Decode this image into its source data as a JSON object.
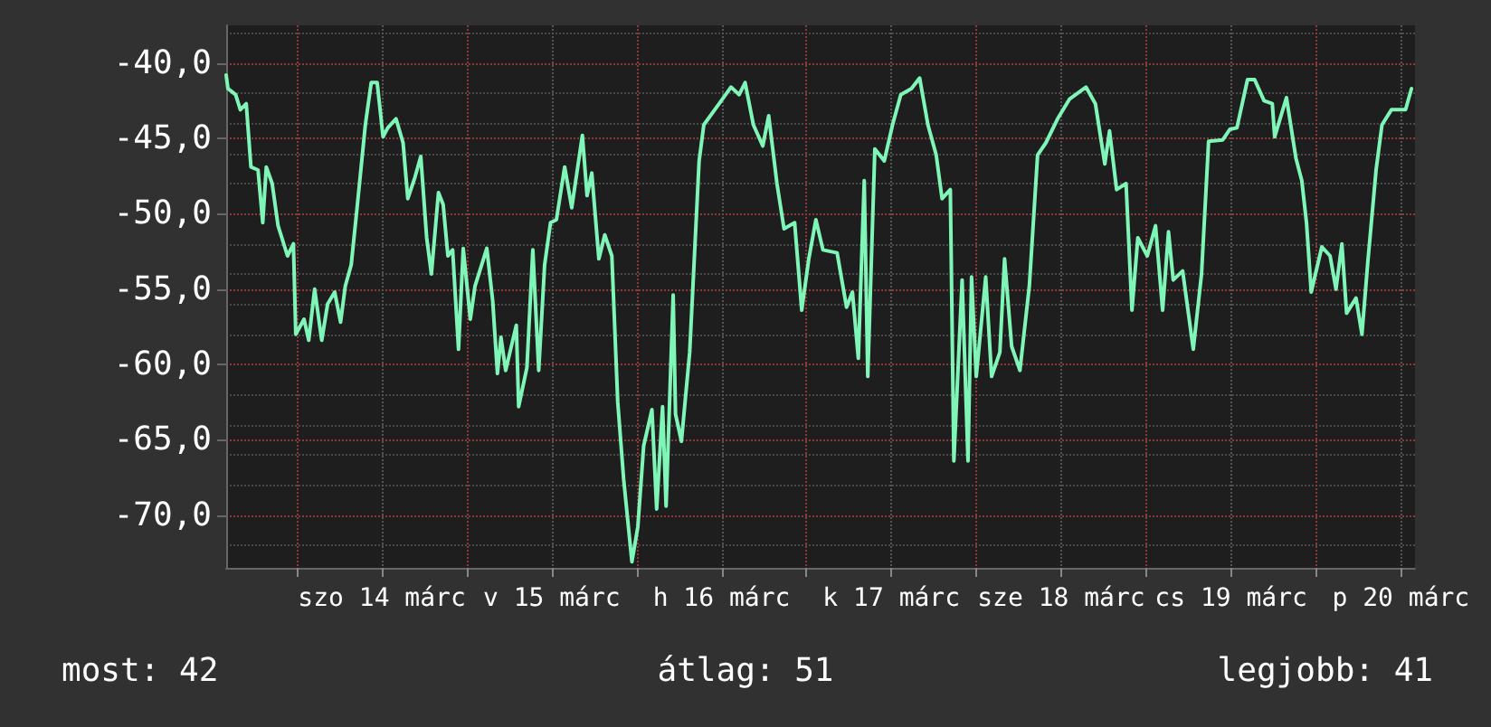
{
  "chart_data": {
    "type": "line",
    "marker": "none",
    "grid": true,
    "xlim": [
      "--03-13T14:00",
      "--03-20T14:00"
    ],
    "xticks": [
      {
        "value": "--03-14T00:00",
        "label": null
      },
      {
        "value": "--03-14T12:00",
        "label": "szo 14 márc"
      },
      {
        "value": "--03-15T00:00",
        "label": null
      },
      {
        "value": "--03-15T12:00",
        "label": "v 15 márc"
      },
      {
        "value": "--03-16T00:00",
        "label": null
      },
      {
        "value": "--03-16T12:00",
        "label": "h 16 márc"
      },
      {
        "value": "--03-17T00:00",
        "label": null
      },
      {
        "value": "--03-17T12:00",
        "label": "k 17 márc"
      },
      {
        "value": "--03-18T00:00",
        "label": null
      },
      {
        "value": "--03-18T12:00",
        "label": "sze 18 márc"
      },
      {
        "value": "--03-19T00:00",
        "label": null
      },
      {
        "value": "--03-19T12:00",
        "label": "cs 19 márc"
      },
      {
        "value": "--03-20T00:00",
        "label": null
      },
      {
        "value": "--03-20T12:00",
        "label": "p 20 márc"
      }
    ],
    "ylim": [
      -73.5,
      -37.5
    ],
    "yticks": [
      {
        "value": -70,
        "label": "-70,0"
      },
      {
        "value": -65,
        "label": "-65,0"
      },
      {
        "value": -60,
        "label": "-60,0"
      },
      {
        "value": -55,
        "label": "-55,0"
      },
      {
        "value": -50,
        "label": "-50,0"
      },
      {
        "value": -45,
        "label": "-45,0"
      },
      {
        "value": -40,
        "label": "-40,0"
      }
    ],
    "annotations": [
      "most: 42",
      "átlag: 51",
      "legjobb: 41"
    ],
    "series": [
      {
        "color": "#7ff5b8",
        "x": [
          "--03-13T14:00",
          "--03-13T14:15",
          "--03-13T15:20",
          "--03-13T16:00",
          "--03-13T16:50",
          "--03-13T17:30",
          "--03-13T18:30",
          "--03-13T19:10",
          "--03-13T19:40",
          "--03-13T20:30",
          "--03-13T21:20",
          "--03-13T22:40",
          "--03-13T23:30",
          "--03-13T23:50",
          "--03-14T01:00",
          "--03-14T01:40",
          "--03-14T02:30",
          "--03-14T03:30",
          "--03-14T04:20",
          "--03-14T05:20",
          "--03-14T06:10",
          "--03-14T06:50",
          "--03-14T07:40",
          "--03-14T08:30",
          "--03-14T09:40",
          "--03-14T10:30",
          "--03-14T11:20",
          "--03-14T12:10",
          "--03-14T12:50",
          "--03-14T14:00",
          "--03-14T15:00",
          "--03-14T15:40",
          "--03-14T16:40",
          "--03-14T17:30",
          "--03-14T18:20",
          "--03-14T19:00",
          "--03-14T20:00",
          "--03-14T20:40",
          "--03-14T21:20",
          "--03-14T22:00",
          "--03-14T22:50",
          "--03-14T23:30",
          "--03-15T00:30",
          "--03-15T01:10",
          "--03-15T02:50",
          "--03-15T03:40",
          "--03-15T04:20",
          "--03-15T04:50",
          "--03-15T05:30",
          "--03-15T07:00",
          "--03-15T07:20",
          "--03-15T08:30",
          "--03-15T09:20",
          "--03-15T10:10",
          "--03-15T11:00",
          "--03-15T11:50",
          "--03-15T12:40",
          "--03-15T13:50",
          "--03-15T14:50",
          "--03-15T16:20",
          "--03-15T17:00",
          "--03-15T17:40",
          "--03-15T18:40",
          "--03-15T19:30",
          "--03-15T20:30",
          "--03-15T21:20",
          "--03-15T22:10",
          "--03-15T23:20",
          "--03-16T00:10",
          "--03-16T01:00",
          "--03-16T02:10",
          "--03-16T02:50",
          "--03-16T03:40",
          "--03-16T04:10",
          "--03-16T05:10",
          "--03-16T05:30",
          "--03-16T06:20",
          "--03-16T07:30",
          "--03-16T08:50",
          "--03-16T09:30",
          "--03-16T11:40",
          "--03-16T13:20",
          "--03-16T14:30",
          "--03-16T15:20",
          "--03-16T16:30",
          "--03-16T17:50",
          "--03-16T18:40",
          "--03-16T19:50",
          "--03-16T20:50",
          "--03-16T22:20",
          "--03-16T23:20",
          "--03-17T00:20",
          "--03-17T01:20",
          "--03-17T02:20",
          "--03-17T04:20",
          "--03-17T05:40",
          "--03-17T06:30",
          "--03-17T07:20",
          "--03-17T08:10",
          "--03-17T08:40",
          "--03-17T09:40",
          "--03-17T11:00",
          "--03-17T12:10",
          "--03-17T13:20",
          "--03-17T14:50",
          "--03-17T16:00",
          "--03-17T17:10",
          "--03-17T18:20",
          "--03-17T19:10",
          "--03-17T20:20",
          "--03-17T20:50",
          "--03-17T22:00",
          "--03-17T22:50",
          "--03-17T23:20",
          "--03-18T00:00",
          "--03-18T01:20",
          "--03-18T02:10",
          "--03-18T03:20",
          "--03-18T04:00",
          "--03-18T05:00",
          "--03-18T06:10",
          "--03-18T07:30",
          "--03-18T08:40",
          "--03-18T09:50",
          "--03-18T11:30",
          "--03-18T13:10",
          "--03-18T15:30",
          "--03-18T16:50",
          "--03-18T18:10",
          "--03-18T18:50",
          "--03-18T19:50",
          "--03-18T21:10",
          "--03-18T22:00",
          "--03-18T22:50",
          "--03-19T00:10",
          "--03-19T01:20",
          "--03-19T02:20",
          "--03-19T03:10",
          "--03-19T03:50",
          "--03-19T05:10",
          "--03-19T06:40",
          "--03-19T07:50",
          "--03-19T08:50",
          "--03-19T10:50",
          "--03-19T11:50",
          "--03-19T12:50",
          "--03-19T14:20",
          "--03-19T15:20",
          "--03-19T16:40",
          "--03-19T17:50",
          "--03-19T18:10",
          "--03-19T19:50",
          "--03-19T21:10",
          "--03-19T22:00",
          "--03-19T22:40",
          "--03-19T23:20",
          "--03-20T00:50",
          "--03-20T02:00",
          "--03-20T02:50",
          "--03-20T03:40",
          "--03-20T04:20",
          "--03-20T05:40",
          "--03-20T06:30",
          "--03-20T07:20",
          "--03-20T08:30",
          "--03-20T09:20",
          "--03-20T10:40",
          "--03-20T12:40",
          "--03-20T13:30"
        ],
        "values": [
          -40.8,
          -41.7,
          -42.1,
          -43.1,
          -42.7,
          -46.9,
          -47.1,
          -50.6,
          -46.9,
          -48.0,
          -50.8,
          -52.8,
          -52.0,
          -58.0,
          -57.0,
          -58.4,
          -55.0,
          -58.4,
          -56.0,
          -55.2,
          -57.2,
          -54.8,
          -53.4,
          -49.6,
          -44.1,
          -41.3,
          -41.3,
          -44.9,
          -44.3,
          -43.7,
          -45.3,
          -49.0,
          -47.6,
          -46.2,
          -51.6,
          -54.0,
          -48.6,
          -49.4,
          -52.8,
          -52.4,
          -59.0,
          -52.3,
          -57.0,
          -54.8,
          -52.3,
          -55.8,
          -60.6,
          -58.2,
          -60.4,
          -57.4,
          -62.8,
          -60.2,
          -52.4,
          -60.4,
          -53.4,
          -50.6,
          -50.4,
          -46.9,
          -49.6,
          -44.8,
          -48.8,
          -47.3,
          -53.0,
          -51.4,
          -52.8,
          -62.5,
          -67.6,
          -73.1,
          -70.8,
          -65.4,
          -63.0,
          -69.6,
          -62.8,
          -69.4,
          -55.4,
          -63.3,
          -65.1,
          -59.2,
          -46.5,
          -44.1,
          -42.7,
          -41.6,
          -42.1,
          -41.3,
          -44.1,
          -45.5,
          -43.5,
          -48.0,
          -51.0,
          -50.6,
          -56.4,
          -53.0,
          -50.4,
          -52.4,
          -52.6,
          -56.2,
          -55.2,
          -59.6,
          -47.8,
          -60.8,
          -45.7,
          -46.5,
          -44.1,
          -42.1,
          -41.7,
          -41.0,
          -44.1,
          -46.1,
          -49.0,
          -48.4,
          -66.4,
          -54.4,
          -66.4,
          -54.2,
          -60.8,
          -54.2,
          -60.8,
          -59.2,
          -53.0,
          -58.8,
          -60.4,
          -54.8,
          -46.1,
          -45.3,
          -43.7,
          -42.4,
          -41.6,
          -42.7,
          -46.7,
          -44.5,
          -48.4,
          -48.0,
          -56.4,
          -51.6,
          -52.8,
          -50.8,
          -56.4,
          -51.2,
          -54.4,
          -53.8,
          -59.0,
          -54.0,
          -45.2,
          -45.1,
          -44.4,
          -44.3,
          -41.1,
          -41.1,
          -42.5,
          -42.7,
          -44.9,
          -42.3,
          -46.3,
          -47.8,
          -50.6,
          -55.2,
          -52.2,
          -52.8,
          -55.0,
          -52.0,
          -56.6,
          -55.6,
          -58.0,
          -53.2,
          -47.1,
          -44.1,
          -43.1,
          -43.1,
          -41.7
        ]
      }
    ]
  }
}
